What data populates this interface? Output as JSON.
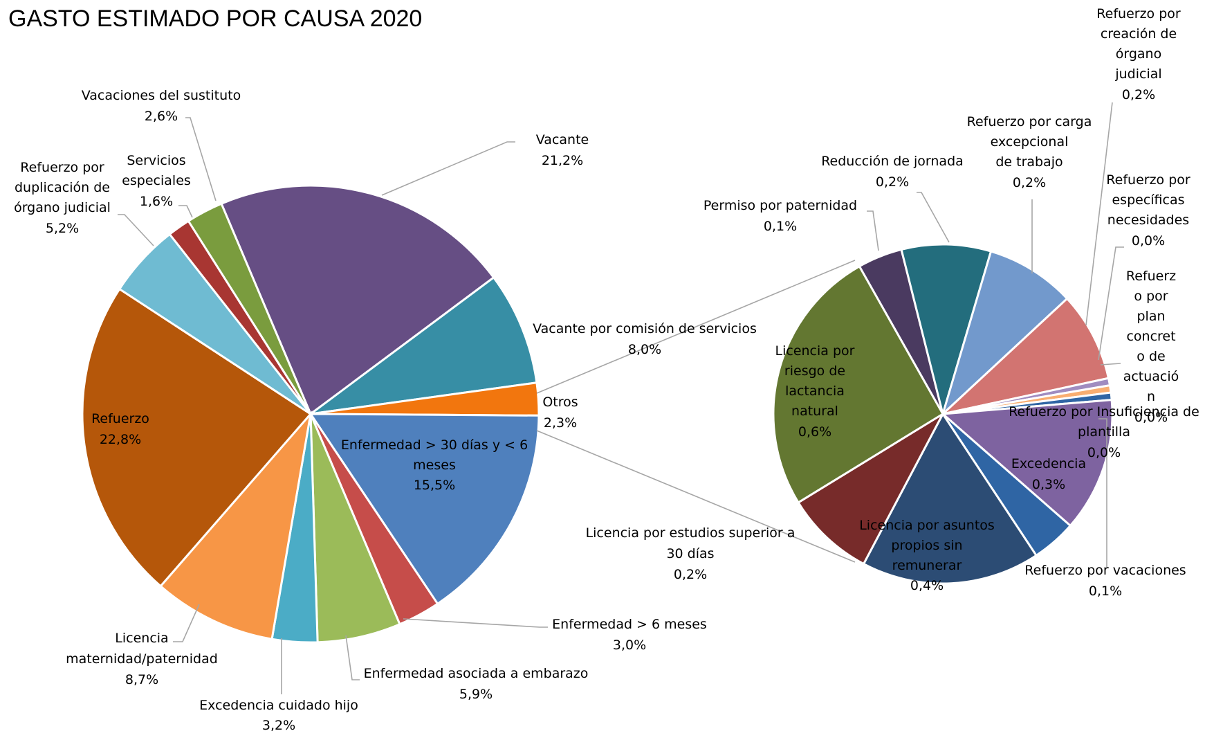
{
  "chart_data": {
    "type": "pie",
    "subtype": "pie-of-pie",
    "title": "GASTO ESTIMADO POR CAUSA 2020",
    "main_pie": {
      "slices": [
        {
          "label": "Vacante",
          "value": 21.2,
          "display": "21,2%",
          "color": "#664e84"
        },
        {
          "label": "Vacante por comisión de servicios",
          "value": 8.0,
          "display": "8,0%",
          "color": "#378ea5"
        },
        {
          "label": "Otros",
          "value": 2.3,
          "display": "2,3%",
          "color": "#f2760e"
        },
        {
          "label": "Enfermedad > 30 días y < 6 meses",
          "value": 15.5,
          "display": "15,5%",
          "color": "#4f80bd"
        },
        {
          "label": "Enfermedad > 6 meses",
          "value": 3.0,
          "display": "3,0%",
          "color": "#c64d4a"
        },
        {
          "label": "Enfermedad asociada a embarazo",
          "value": 5.9,
          "display": "5,9%",
          "color": "#9bbb59"
        },
        {
          "label": "Excedencia cuidado hijo",
          "value": 3.2,
          "display": "3,2%",
          "color": "#4bacc6"
        },
        {
          "label": "Licencia maternidad/paternidad",
          "value": 8.7,
          "display": "8,7%",
          "color": "#f79646"
        },
        {
          "label": "Refuerzo",
          "value": 22.8,
          "display": "22,8%",
          "color": "#b5570a"
        },
        {
          "label": "Refuerzo por duplicación de órgano judicial",
          "value": 5.2,
          "display": "5,2%",
          "color": "#6fbbd2"
        },
        {
          "label": "Servicios especiales",
          "value": 1.6,
          "display": "1,6%",
          "color": "#a83632"
        },
        {
          "label": "Vacaciones del sustituto",
          "value": 2.6,
          "display": "2,6%",
          "color": "#7a9c3e"
        }
      ]
    },
    "secondary_pie": {
      "source_slice": "Otros",
      "slices": [
        {
          "label": "Permiso por paternidad",
          "value": 0.1,
          "display": "0,1%",
          "color": "#4a3a60"
        },
        {
          "label": "Reducción de jornada",
          "value": 0.2,
          "display": "0,2%",
          "color": "#236d7d"
        },
        {
          "label": "Refuerzo por carga excepcional de trabajo",
          "value": 0.2,
          "display": "0,2%",
          "color": "#7299cc"
        },
        {
          "label": "Refuerzo por creación de órgano judicial",
          "value": 0.2,
          "display": "0,2%",
          "color": "#d27471"
        },
        {
          "label": "Refuerzo por específicas necesidades",
          "value": 0.0,
          "display": "0,0%",
          "color": "#a08cc0"
        },
        {
          "label": "Refuerzo por plan concreto de actuación",
          "value": 0.0,
          "display": "0,0%",
          "color": "#f9ae71"
        },
        {
          "label": "Refuerzo por Insuficiencia de plantilla",
          "value": 0.0,
          "display": "0,0%",
          "color": "#2f65a4"
        },
        {
          "label": "Excedencia",
          "value": 0.3,
          "display": "0,3%",
          "color": "#7e63a0"
        },
        {
          "label": "Refuerzo por vacaciones",
          "value": 0.1,
          "display": "0,1%",
          "color": "#2f65a4"
        },
        {
          "label": "Licencia por asuntos propios sin remunerar",
          "value": 0.4,
          "display": "0,4%",
          "color": "#2c4c74"
        },
        {
          "label": "Licencia por estudios superior a 30 días",
          "value": 0.2,
          "display": "0,2%",
          "color": "#772b2a"
        },
        {
          "label": "Licencia por riesgo de lactancia natural",
          "value": 0.6,
          "display": "0,6%",
          "color": "#637731"
        }
      ]
    },
    "text": {
      "t_vacante": "Vacante",
      "v_vacante": "21,2%",
      "t_vcs": "Vacante por comisión de servicios",
      "v_vcs": "8,0%",
      "t_otros": "Otros",
      "v_otros": "2,3%",
      "t_enf30_1": "Enfermedad > 30 días y < 6",
      "t_enf30_2": "meses",
      "v_enf30": "15,5%",
      "t_enf6": "Enfermedad > 6 meses",
      "v_enf6": "3,0%",
      "t_emb": "Enfermedad asociada a embarazo",
      "v_emb": "5,9%",
      "t_exc_1": "Excedencia cuidado hijo",
      "v_exc": "3,2%",
      "t_lic_1": "Licencia",
      "t_lic_2": "maternidad/paternidad",
      "v_lic": "8,7%",
      "t_ref": "Refuerzo",
      "v_ref": "22,8%",
      "t_dup_1": "Refuerzo por",
      "t_dup_2": "duplicación de",
      "t_dup_3": "órgano judicial",
      "v_dup": "5,2%",
      "t_serv_1": "Servicios",
      "t_serv_2": "especiales",
      "v_serv": "1,6%",
      "t_vsus": "Vacaciones del sustituto",
      "v_vsus": "2,6%",
      "t_perm": "Permiso por paternidad",
      "v_perm": "0,1%",
      "t_red": "Reducción de jornada",
      "v_red": "0,2%",
      "t_carga_1": "Refuerzo por carga",
      "t_carga_2": "excepcional",
      "t_carga_3": "de trabajo",
      "v_carga": "0,2%",
      "t_crea_1": "Refuerzo por",
      "t_crea_2": "creación de",
      "t_crea_3": "órgano",
      "t_crea_4": "judicial",
      "v_crea": "0,2%",
      "t_esp_1": "Refuerzo por",
      "t_esp_2": "específicas",
      "t_esp_3": "necesidades",
      "v_esp": "0,0%",
      "t_plan_1": "Refuerz",
      "t_plan_2": "o por",
      "t_plan_3": "plan",
      "t_plan_4": "concret",
      "t_plan_5": "o de",
      "t_plan_6": "actuació",
      "t_plan_7": "n",
      "v_plan": "0,0%",
      "t_ins_1": "Refuerzo por Insuficiencia de",
      "t_ins_2": "plantilla",
      "v_ins": "0,0%",
      "t_excd": "Excedencia",
      "v_excd": "0,3%",
      "t_rvac": "Refuerzo por vacaciones",
      "v_rvac": "0,1%",
      "t_asun_1": "Licencia por asuntos",
      "t_asun_2": "propios sin",
      "t_asun_3": "remunerar",
      "v_asun": "0,4%",
      "t_est_1": "Licencia por estudios superior a",
      "t_est_2": "30 días",
      "v_est": "0,2%",
      "t_lact_1": "Licencia por",
      "t_lact_2": "riesgo de",
      "t_lact_3": "lactancia",
      "t_lact_4": "natural",
      "v_lact": "0,6%"
    }
  }
}
